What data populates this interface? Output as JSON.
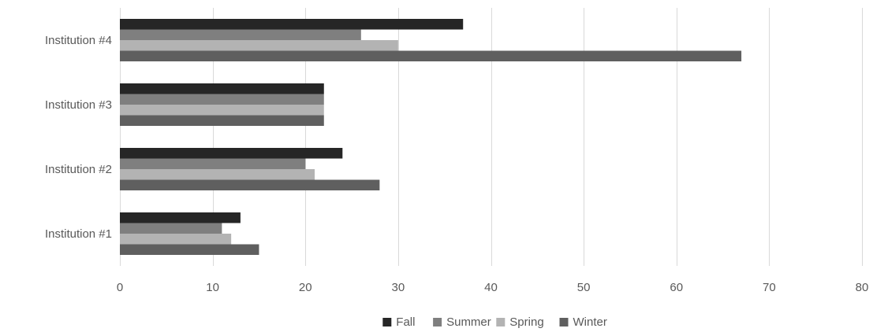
{
  "chart_data": {
    "type": "bar",
    "orientation": "horizontal",
    "categories": [
      "Institution #4",
      "Institution #3",
      "Institution #2",
      "Institution #1"
    ],
    "series": [
      {
        "name": "Fall",
        "color": "#262626",
        "values": [
          37,
          22,
          24,
          13
        ]
      },
      {
        "name": "Summer",
        "color": "#7f7f7f",
        "values": [
          26,
          22,
          20,
          11
        ]
      },
      {
        "name": "Spring",
        "color": "#b3b3b3",
        "values": [
          30,
          22,
          21,
          12
        ]
      },
      {
        "name": "Winter",
        "color": "#5f5f5f",
        "values": [
          67,
          22,
          28,
          15
        ]
      }
    ],
    "xlim": [
      0,
      80
    ],
    "xticks": [
      "0",
      "10",
      "20",
      "30",
      "40",
      "50",
      "60",
      "70",
      "80"
    ],
    "grid": true,
    "legend_position": "bottom"
  }
}
